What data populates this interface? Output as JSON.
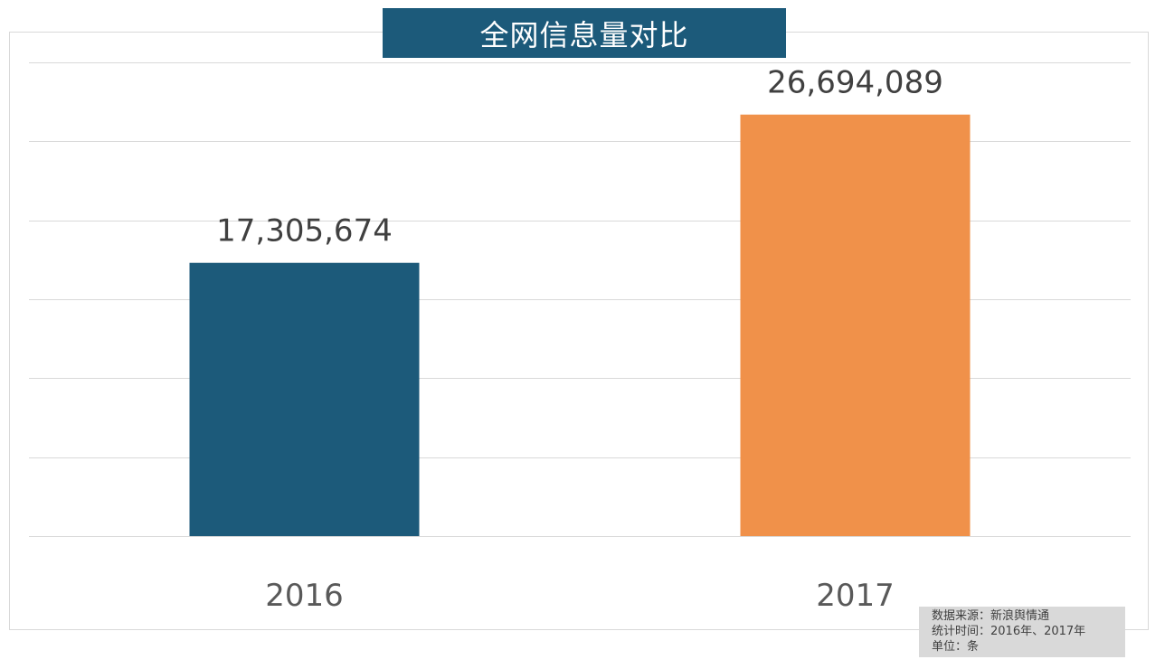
{
  "chart_data": {
    "type": "bar",
    "title": "全网信息量对比",
    "categories": [
      "2016",
      "2017"
    ],
    "values": [
      17305674,
      26694089
    ],
    "data_labels": [
      "17,305,674",
      "26,694,089"
    ],
    "colors": [
      "#1c5a7a",
      "#f0914a"
    ],
    "ylim": [
      0,
      30000000
    ],
    "ytick_step": 5000000,
    "grid": true,
    "xlabel": "",
    "ylabel": ""
  },
  "source_note": {
    "line1": "数据来源：新浪舆情通",
    "line2": "统计时间：2016年、2017年",
    "line3": "单位：条"
  }
}
